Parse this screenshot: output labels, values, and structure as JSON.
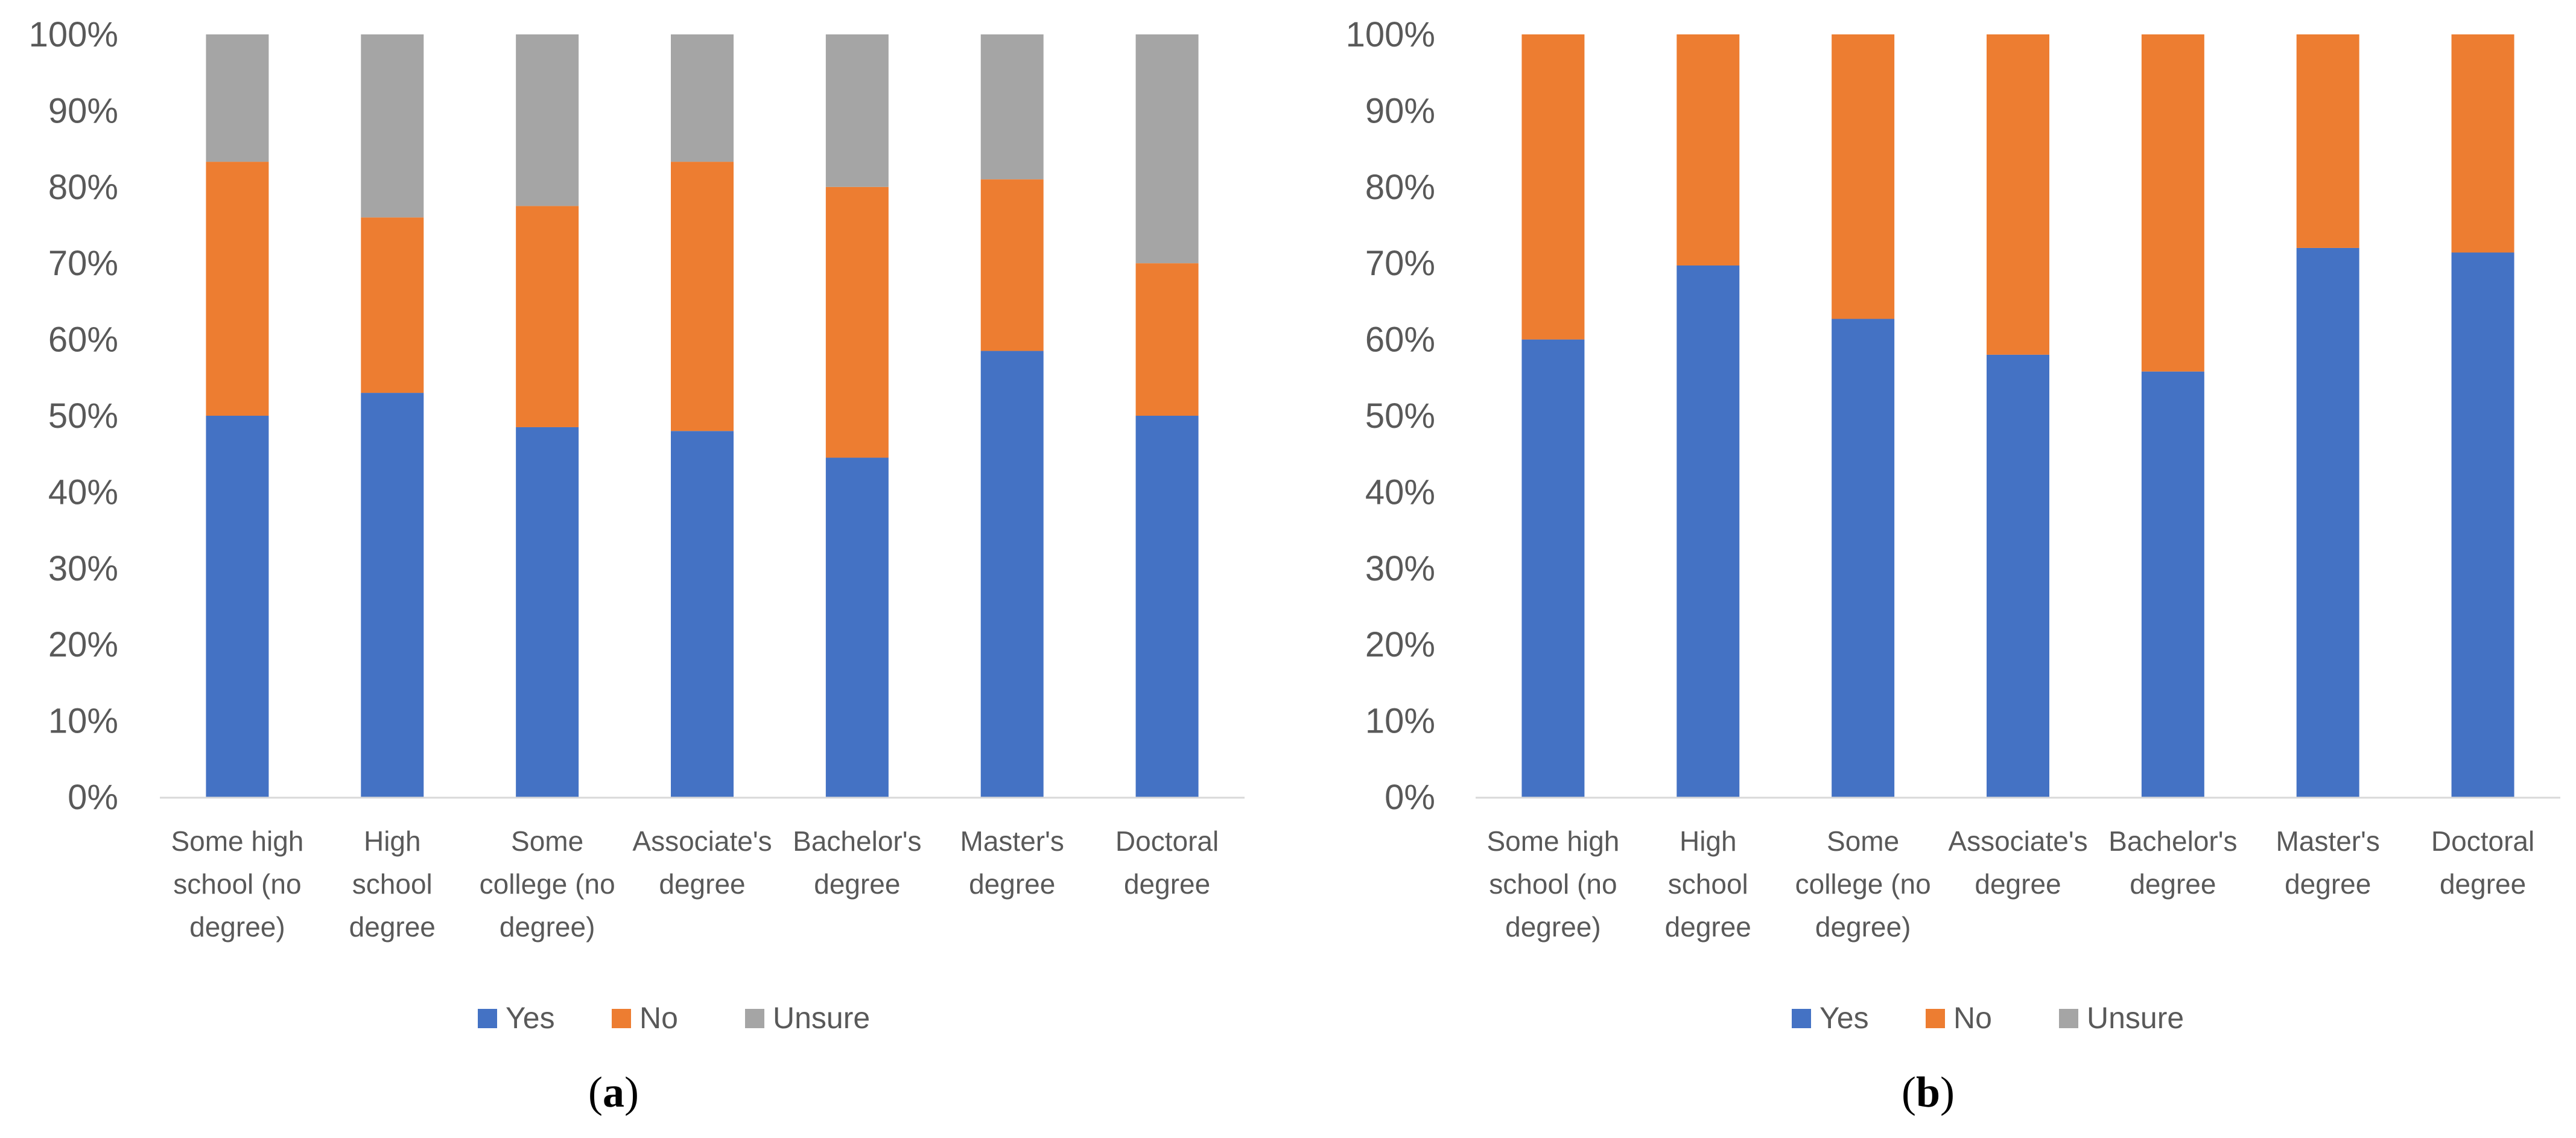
{
  "figure": {
    "colors": {
      "Yes": "#4472c4",
      "No": "#ed7d31",
      "Unsure": "#a5a5a5"
    }
  },
  "chart_data": [
    {
      "type": "bar",
      "stacked": "percent",
      "panel_label": {
        "open": "(",
        "letter": "a",
        "close": ")"
      },
      "categories": [
        "Some high school (no degree)",
        "High school degree",
        "Some college (no degree)",
        "Associate's degree",
        "Bachelor's degree",
        "Master's degree",
        "Doctoral degree"
      ],
      "category_lines": [
        [
          "Some high",
          "school (no",
          "degree)"
        ],
        [
          "High",
          "school",
          "degree"
        ],
        [
          "Some",
          "college (no",
          "degree)"
        ],
        [
          "Associate's",
          "degree"
        ],
        [
          "Bachelor's",
          "degree"
        ],
        [
          "Master's",
          "degree"
        ],
        [
          "Doctoral",
          "degree"
        ]
      ],
      "series": [
        {
          "name": "Yes",
          "values": [
            50,
            53,
            48.5,
            48,
            44.5,
            58.5,
            50
          ]
        },
        {
          "name": "No",
          "values": [
            33.3,
            23,
            29,
            35.3,
            35.5,
            22.5,
            20
          ]
        },
        {
          "name": "Unsure",
          "values": [
            16.7,
            24,
            22.5,
            16.7,
            20,
            19,
            30
          ]
        }
      ],
      "yticks": [
        "0%",
        "10%",
        "20%",
        "30%",
        "40%",
        "50%",
        "60%",
        "70%",
        "80%",
        "90%",
        "100%"
      ],
      "ylim": [
        0,
        100
      ],
      "legend": {
        "position": "bottom",
        "items": [
          "Yes",
          "No",
          "Unsure"
        ]
      },
      "grid": false
    },
    {
      "type": "bar",
      "stacked": "percent",
      "panel_label": {
        "open": "(",
        "letter": "b",
        "close": ")"
      },
      "categories": [
        "Some high school (no degree)",
        "High school degree",
        "Some college (no degree)",
        "Associate's degree",
        "Bachelor's degree",
        "Master's degree",
        "Doctoral degree"
      ],
      "category_lines": [
        [
          "Some high",
          "school (no",
          "degree)"
        ],
        [
          "High",
          "school",
          "degree"
        ],
        [
          "Some",
          "college (no",
          "degree)"
        ],
        [
          "Associate's",
          "degree"
        ],
        [
          "Bachelor's",
          "degree"
        ],
        [
          "Master's",
          "degree"
        ],
        [
          "Doctoral",
          "degree"
        ]
      ],
      "series": [
        {
          "name": "Yes",
          "values": [
            60,
            69.7,
            62.7,
            58,
            55.8,
            72,
            71.4
          ]
        },
        {
          "name": "No",
          "values": [
            40,
            30.3,
            37.3,
            42,
            44.2,
            28,
            28.6
          ]
        },
        {
          "name": "Unsure",
          "values": [
            0,
            0,
            0,
            0,
            0,
            0,
            0
          ]
        }
      ],
      "yticks": [
        "0%",
        "10%",
        "20%",
        "30%",
        "40%",
        "50%",
        "60%",
        "70%",
        "80%",
        "90%",
        "100%"
      ],
      "ylim": [
        0,
        100
      ],
      "legend": {
        "position": "bottom",
        "items": [
          "Yes",
          "No",
          "Unsure"
        ]
      },
      "grid": false
    }
  ]
}
